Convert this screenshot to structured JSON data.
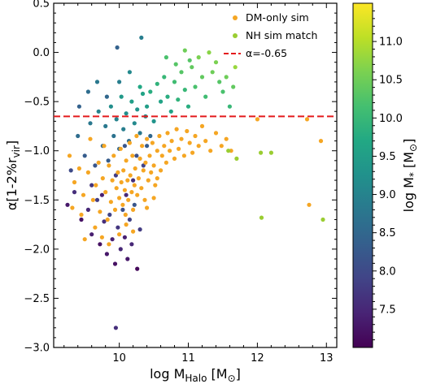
{
  "chart_data": {
    "type": "scatter",
    "xlabel": "log M",
    "xlabel_sub": "Halo",
    "xlabel_unit": " [M",
    "xlabel_unit_sub": "⊙",
    "xlabel_unit_end": "]",
    "ylabel": "α[1-2%r",
    "ylabel_sub": "vir",
    "ylabel_end": "]",
    "xlim": [
      9.05,
      13.15
    ],
    "ylim": [
      -3.0,
      0.5
    ],
    "xticks": [
      10,
      11,
      12,
      13
    ],
    "yticks": [
      0.5,
      0.0,
      -0.5,
      -1.0,
      -1.5,
      -2.0,
      -2.5,
      -3.0
    ],
    "xtick_labels": [
      "10",
      "11",
      "12",
      "13"
    ],
    "ytick_labels": [
      "0.5",
      "0.0",
      "−0.5",
      "−1.0",
      "−1.5",
      "−2.0",
      "−2.5",
      "−3.0"
    ],
    "legend": {
      "location": "top-right",
      "entries": [
        {
          "label": "DM-only sim",
          "color": "#f5a623",
          "marker": "dot"
        },
        {
          "label": "NH sim match",
          "color": "#9acd32",
          "marker": "dot"
        },
        {
          "label": "α=-0.65",
          "color": "#e41a1c",
          "marker": "dashed-line"
        }
      ]
    },
    "reference_line": {
      "y": -0.65,
      "color": "#e41a1c",
      "style": "dashed"
    },
    "colorbar": {
      "label": "log M",
      "label_sub": "*",
      "label_unit": " [M",
      "label_unit_sub": "⊙",
      "label_unit_end": "]",
      "range": [
        7.0,
        11.5
      ],
      "ticks": [
        7.5,
        8.0,
        8.5,
        9.0,
        9.5,
        10.0,
        10.5,
        11.0
      ],
      "tick_labels": [
        "7.5",
        "8.0",
        "8.5",
        "9.0",
        "9.5",
        "10.0",
        "10.5",
        "11.0"
      ],
      "colormap": "viridis"
    },
    "series": [
      {
        "name": "DM-only sim",
        "color": "#f5a623",
        "points": [
          [
            9.28,
            -1.05
          ],
          [
            9.35,
            -1.32
          ],
          [
            9.42,
            -1.18
          ],
          [
            9.48,
            -1.45
          ],
          [
            9.55,
            -1.22
          ],
          [
            9.58,
            -0.88
          ],
          [
            9.62,
            -1.5
          ],
          [
            9.66,
            -1.35
          ],
          [
            9.7,
            -1.12
          ],
          [
            9.72,
            -1.62
          ],
          [
            9.76,
            -1.28
          ],
          [
            9.78,
            -0.95
          ],
          [
            9.8,
            -1.42
          ],
          [
            9.83,
            -1.7
          ],
          [
            9.85,
            -1.15
          ],
          [
            9.88,
            -1.52
          ],
          [
            9.9,
            -1.3
          ],
          [
            9.92,
            -1.05
          ],
          [
            9.94,
            -1.6
          ],
          [
            9.96,
            -1.38
          ],
          [
            9.98,
            -1.22
          ],
          [
            10.0,
            -1.48
          ],
          [
            10.02,
            -0.98
          ],
          [
            10.03,
            -1.32
          ],
          [
            10.05,
            -1.55
          ],
          [
            10.06,
            -1.2
          ],
          [
            10.08,
            -1.4
          ],
          [
            10.09,
            -1.65
          ],
          [
            10.1,
            -1.1
          ],
          [
            10.12,
            -1.3
          ],
          [
            10.13,
            -1.5
          ],
          [
            10.15,
            -0.92
          ],
          [
            10.16,
            -1.25
          ],
          [
            10.18,
            -1.42
          ],
          [
            10.19,
            -1.05
          ],
          [
            10.2,
            -1.6
          ],
          [
            10.22,
            -1.35
          ],
          [
            10.23,
            -1.18
          ],
          [
            10.25,
            -0.85
          ],
          [
            10.26,
            -1.45
          ],
          [
            10.28,
            -1.28
          ],
          [
            10.3,
            -1.08
          ],
          [
            10.32,
            -1.38
          ],
          [
            10.33,
            -0.95
          ],
          [
            10.35,
            -1.2
          ],
          [
            10.37,
            -1.5
          ],
          [
            10.38,
            -1.12
          ],
          [
            10.4,
            -0.88
          ],
          [
            10.42,
            -1.3
          ],
          [
            10.44,
            -1.05
          ],
          [
            10.46,
            -1.22
          ],
          [
            10.48,
            -0.92
          ],
          [
            10.5,
            -1.15
          ],
          [
            10.52,
            -1.35
          ],
          [
            10.55,
            -1.0
          ],
          [
            10.58,
            -0.85
          ],
          [
            10.6,
            -1.2
          ],
          [
            10.62,
            -1.05
          ],
          [
            10.65,
            -0.95
          ],
          [
            10.68,
            -1.12
          ],
          [
            10.7,
            -0.82
          ],
          [
            10.73,
            -1.0
          ],
          [
            10.76,
            -0.9
          ],
          [
            10.8,
            -1.08
          ],
          [
            10.83,
            -0.78
          ],
          [
            10.86,
            -0.98
          ],
          [
            10.9,
            -0.88
          ],
          [
            10.94,
            -1.05
          ],
          [
            10.98,
            -0.8
          ],
          [
            11.02,
            -0.92
          ],
          [
            11.06,
            -1.02
          ],
          [
            11.1,
            -0.85
          ],
          [
            11.15,
            -0.95
          ],
          [
            11.2,
            -0.75
          ],
          [
            11.25,
            -0.9
          ],
          [
            11.32,
            -1.0
          ],
          [
            11.4,
            -0.82
          ],
          [
            11.48,
            -0.95
          ],
          [
            11.55,
            -0.88
          ],
          [
            11.62,
            -1.0
          ],
          [
            12.0,
            -0.68
          ],
          [
            12.72,
            -0.68
          ],
          [
            12.75,
            -1.55
          ],
          [
            12.92,
            -0.9
          ],
          [
            9.5,
            -1.9
          ],
          [
            9.65,
            -1.78
          ],
          [
            9.75,
            -1.88
          ],
          [
            9.85,
            -1.95
          ],
          [
            10.0,
            -1.85
          ],
          [
            10.1,
            -1.75
          ],
          [
            10.2,
            -1.82
          ],
          [
            9.32,
            -1.58
          ],
          [
            9.45,
            -1.65
          ],
          [
            10.4,
            -1.58
          ],
          [
            10.5,
            -1.48
          ],
          [
            10.55,
            -1.28
          ]
        ]
      },
      {
        "name": "NH sim match",
        "color": "#9acd32",
        "points": [
          [
            11.58,
            -1.0
          ],
          [
            11.7,
            -1.08
          ],
          [
            12.05,
            -1.02
          ],
          [
            12.2,
            -1.02
          ],
          [
            12.06,
            -1.68
          ],
          [
            12.95,
            -1.7
          ]
        ]
      },
      {
        "name": "logMstar",
        "color_by": "logMstar",
        "points": [
          [
            9.25,
            -1.55
          ],
          [
            9.35,
            -1.42
          ],
          [
            9.45,
            -1.7
          ],
          [
            9.55,
            -1.6
          ],
          [
            9.6,
            -1.85
          ],
          [
            9.68,
            -1.5
          ],
          [
            9.72,
            -1.95
          ],
          [
            9.78,
            -1.72
          ],
          [
            9.82,
            -2.05
          ],
          [
            9.86,
            -1.65
          ],
          [
            9.9,
            -1.9
          ],
          [
            9.94,
            -2.15
          ],
          [
            9.98,
            -1.78
          ],
          [
            10.02,
            -2.0
          ],
          [
            10.05,
            -1.6
          ],
          [
            10.08,
            -1.88
          ],
          [
            10.12,
            -2.1
          ],
          [
            10.15,
            -1.7
          ],
          [
            10.18,
            -1.95
          ],
          [
            10.22,
            -1.55
          ],
          [
            10.26,
            -2.2
          ],
          [
            9.95,
            -2.8
          ],
          [
            10.3,
            -1.8
          ],
          [
            9.3,
            -1.2
          ],
          [
            9.4,
            -0.85
          ],
          [
            9.5,
            -1.05
          ],
          [
            9.58,
            -0.72
          ],
          [
            9.65,
            -1.15
          ],
          [
            9.7,
            -0.6
          ],
          [
            9.76,
            -0.95
          ],
          [
            9.8,
            -0.75
          ],
          [
            9.84,
            -1.1
          ],
          [
            9.88,
            -0.55
          ],
          [
            9.92,
            -0.85
          ],
          [
            9.96,
            -0.68
          ],
          [
            10.0,
            -0.98
          ],
          [
            10.03,
            -0.45
          ],
          [
            10.06,
            -0.78
          ],
          [
            10.1,
            -0.62
          ],
          [
            10.14,
            -0.9
          ],
          [
            10.18,
            -0.5
          ],
          [
            10.22,
            -0.72
          ],
          [
            10.26,
            -0.58
          ],
          [
            10.3,
            -0.82
          ],
          [
            10.34,
            -0.42
          ],
          [
            10.38,
            -0.65
          ],
          [
            9.97,
            0.05
          ],
          [
            10.32,
            0.15
          ],
          [
            10.3,
            -0.35
          ],
          [
            10.4,
            -0.55
          ],
          [
            10.45,
            -0.4
          ],
          [
            10.5,
            -0.7
          ],
          [
            10.55,
            -0.32
          ],
          [
            10.6,
            -0.5
          ],
          [
            10.65,
            -0.25
          ],
          [
            10.7,
            -0.45
          ],
          [
            10.75,
            -0.6
          ],
          [
            10.8,
            -0.3
          ],
          [
            10.85,
            -0.48
          ],
          [
            10.9,
            -0.2
          ],
          [
            10.95,
            -0.38
          ],
          [
            11.0,
            -0.55
          ],
          [
            11.05,
            -0.15
          ],
          [
            11.1,
            -0.35
          ],
          [
            11.15,
            -0.05
          ],
          [
            11.2,
            -0.25
          ],
          [
            11.25,
            -0.45
          ],
          [
            11.3,
            0.0
          ],
          [
            11.35,
            -0.2
          ],
          [
            11.4,
            -0.1
          ],
          [
            11.45,
            -0.3
          ],
          [
            11.5,
            -0.4
          ],
          [
            11.55,
            -0.25
          ],
          [
            11.6,
            -0.55
          ],
          [
            11.65,
            -0.35
          ],
          [
            11.68,
            -0.15
          ],
          [
            10.68,
            -0.05
          ],
          [
            10.82,
            -0.12
          ],
          [
            10.95,
            0.02
          ],
          [
            11.02,
            -0.08
          ],
          [
            9.42,
            -0.55
          ],
          [
            9.55,
            -0.4
          ],
          [
            9.68,
            -0.3
          ],
          [
            9.82,
            -0.45
          ],
          [
            10.0,
            -0.3
          ],
          [
            10.15,
            -0.2
          ],
          [
            10.2,
            -1.3
          ],
          [
            10.35,
            -1.15
          ],
          [
            10.1,
            -1.45
          ],
          [
            9.95,
            -1.25
          ],
          [
            10.25,
            -1.05
          ],
          [
            10.4,
            -0.95
          ],
          [
            9.6,
            -1.35
          ],
          [
            10.45,
            -0.85
          ],
          [
            9.75,
            -1.45
          ],
          [
            10.08,
            -0.95
          ]
        ],
        "color_values": [
          7.3,
          7.6,
          7.2,
          7.5,
          7.4,
          7.8,
          7.2,
          7.6,
          7.3,
          7.9,
          7.4,
          7.2,
          7.7,
          7.5,
          8.1,
          7.4,
          7.3,
          7.9,
          7.5,
          8.2,
          7.1,
          7.6,
          7.8,
          8.0,
          8.6,
          8.3,
          8.8,
          8.2,
          9.0,
          8.5,
          8.8,
          8.3,
          9.2,
          8.7,
          9.0,
          8.5,
          9.4,
          8.9,
          9.2,
          8.6,
          9.5,
          9.1,
          9.3,
          8.8,
          9.6,
          9.2,
          8.4,
          8.9,
          9.7,
          9.5,
          9.8,
          9.3,
          9.9,
          9.6,
          10.0,
          9.8,
          9.6,
          10.1,
          9.9,
          10.3,
          10.0,
          9.8,
          10.4,
          10.2,
          10.6,
          10.4,
          10.1,
          10.7,
          10.5,
          10.6,
          10.3,
          10.2,
          10.5,
          10.0,
          10.4,
          10.8,
          10.2,
          10.3,
          10.5,
          10.3,
          8.4,
          8.6,
          8.8,
          8.5,
          8.9,
          9.1,
          7.6,
          7.9,
          7.5,
          7.8,
          8.1,
          8.3,
          7.7,
          8.5,
          7.4,
          8.2
        ]
      }
    ]
  }
}
